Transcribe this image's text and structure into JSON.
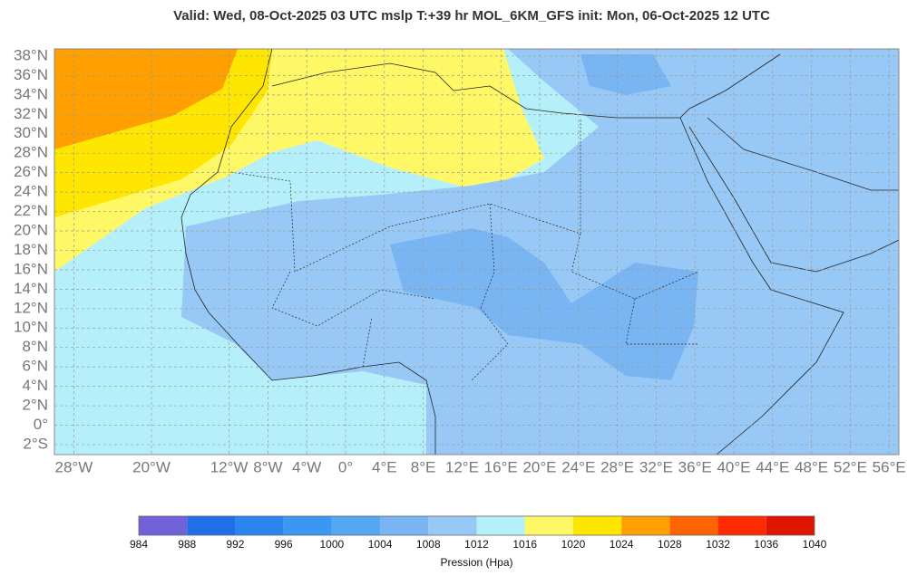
{
  "title": "Valid: Wed, 08-Oct-2025   03 UTC   mslp   T:+39 hr   MOL_6KM_GFS      init: Mon, 06-Oct-2025   12 UTC",
  "lat_ticks": [
    {
      "value": 38,
      "label": "38°N"
    },
    {
      "value": 36,
      "label": "36°N"
    },
    {
      "value": 34,
      "label": "34°N"
    },
    {
      "value": 32,
      "label": "32°N"
    },
    {
      "value": 30,
      "label": "30°N"
    },
    {
      "value": 28,
      "label": "28°N"
    },
    {
      "value": 26,
      "label": "26°N"
    },
    {
      "value": 24,
      "label": "24°N"
    },
    {
      "value": 22,
      "label": "22°N"
    },
    {
      "value": 20,
      "label": "20°N"
    },
    {
      "value": 18,
      "label": "18°N"
    },
    {
      "value": 16,
      "label": "16°N"
    },
    {
      "value": 14,
      "label": "14°N"
    },
    {
      "value": 12,
      "label": "12°N"
    },
    {
      "value": 10,
      "label": "10°N"
    },
    {
      "value": 8,
      "label": "8°N"
    },
    {
      "value": 6,
      "label": "6°N"
    },
    {
      "value": 4,
      "label": "4°N"
    },
    {
      "value": 2,
      "label": "2°N"
    },
    {
      "value": 0,
      "label": "0°"
    },
    {
      "value": -2,
      "label": "2°S"
    }
  ],
  "lon_ticks": [
    {
      "value": -28,
      "label": "28°W"
    },
    {
      "value": -20,
      "label": "20°W"
    },
    {
      "value": -12,
      "label": "12°W"
    },
    {
      "value": -8,
      "label": "8°W"
    },
    {
      "value": -4,
      "label": "4°W"
    },
    {
      "value": 0,
      "label": "0°"
    },
    {
      "value": 4,
      "label": "4°E"
    },
    {
      "value": 8,
      "label": "8°E"
    },
    {
      "value": 12,
      "label": "12°E"
    },
    {
      "value": 16,
      "label": "16°E"
    },
    {
      "value": 20,
      "label": "20°E"
    },
    {
      "value": 24,
      "label": "24°E"
    },
    {
      "value": 28,
      "label": "28°E"
    },
    {
      "value": 32,
      "label": "32°E"
    },
    {
      "value": 36,
      "label": "36°E"
    },
    {
      "value": 40,
      "label": "40°E"
    },
    {
      "value": 44,
      "label": "44°E"
    },
    {
      "value": 48,
      "label": "48°E"
    },
    {
      "value": 52,
      "label": "52°E"
    },
    {
      "value": 56,
      "label": "56°E"
    }
  ],
  "colorbar": {
    "levels": [
      984,
      988,
      992,
      996,
      1000,
      1004,
      1008,
      1012,
      1016,
      1020,
      1024,
      1028,
      1032,
      1036,
      1040
    ],
    "colors": [
      "#7262da",
      "#1f6fe6",
      "#2b85ef",
      "#3a97f2",
      "#54a7f2",
      "#79b5f3",
      "#98c9f6",
      "#b5f0fa",
      "#fff866",
      "#ffe600",
      "#ff9f00",
      "#ff6400",
      "#ff2b00",
      "#e01500"
    ],
    "label": "Pression (Hpa)"
  }
}
